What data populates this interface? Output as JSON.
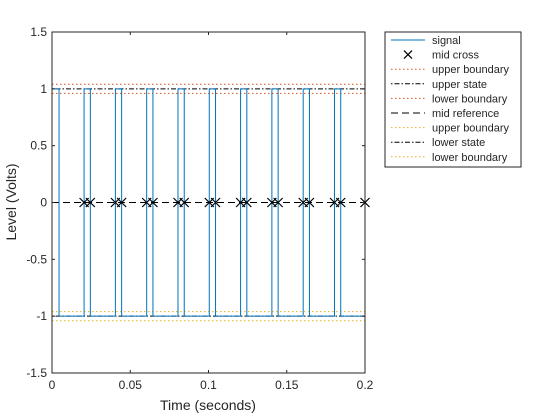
{
  "chart_data": {
    "type": "line",
    "title": "",
    "xlabel": "Time (seconds)",
    "ylabel": "Level (Volts)",
    "xlim": [
      0,
      0.2
    ],
    "ylim": [
      -1.5,
      1.5
    ],
    "xticks": [
      0,
      0.05,
      0.1,
      0.15,
      0.2
    ],
    "xtick_labels": [
      "0",
      "0.05",
      "0.1",
      "0.15",
      "0.2"
    ],
    "yticks": [
      -1.5,
      -1,
      -0.5,
      0,
      0.5,
      1,
      1.5
    ],
    "ytick_labels": [
      "-1.5",
      "-1",
      "-0.5",
      "0",
      "0.5",
      "1",
      "1.5"
    ],
    "grid": false,
    "legend_position": "outside-top-right",
    "signal": {
      "name": "signal",
      "color": "#0072BD",
      "high": 1,
      "low": -1,
      "start_level": 1,
      "transitions": [
        0.0045,
        0.0205,
        0.0245,
        0.0405,
        0.0445,
        0.0605,
        0.0645,
        0.0805,
        0.0845,
        0.1005,
        0.1045,
        0.1205,
        0.1245,
        0.1405,
        0.1445,
        0.1605,
        0.1645,
        0.1805,
        0.1845,
        0.2
      ]
    },
    "mid_cross": {
      "name": "mid cross",
      "color": "#000000",
      "points_x": [
        0.0205,
        0.0245,
        0.0405,
        0.0445,
        0.0605,
        0.0645,
        0.0805,
        0.0845,
        0.1005,
        0.1045,
        0.1205,
        0.1245,
        0.1405,
        0.1445,
        0.1605,
        0.1645,
        0.1805,
        0.1845,
        0.2
      ],
      "y": 0
    },
    "reference_lines": [
      {
        "name": "upper boundary",
        "y": 1.04,
        "style": "dotted",
        "color": "#D95319"
      },
      {
        "name": "upper state",
        "y": 1.0,
        "style": "dashdot",
        "color": "#000000"
      },
      {
        "name": "lower boundary",
        "y": 0.96,
        "style": "dotted",
        "color": "#D95319"
      },
      {
        "name": "mid reference",
        "y": 0,
        "style": "dashed",
        "color": "#000000"
      },
      {
        "name": "upper boundary",
        "y": -0.96,
        "style": "dotted",
        "color": "#EDB120"
      },
      {
        "name": "lower state",
        "y": -1.0,
        "style": "dashdot",
        "color": "#000000"
      },
      {
        "name": "lower boundary",
        "y": -1.04,
        "style": "dotted",
        "color": "#EDB120"
      }
    ],
    "legend": [
      {
        "label": "signal",
        "kind": "line",
        "style": "solid",
        "color": "#0072BD"
      },
      {
        "label": "mid cross",
        "kind": "marker",
        "style": "x",
        "color": "#000000"
      },
      {
        "label": "upper boundary",
        "kind": "line",
        "style": "dotted",
        "color": "#D95319"
      },
      {
        "label": "upper state",
        "kind": "line",
        "style": "dashdot",
        "color": "#000000"
      },
      {
        "label": "lower boundary",
        "kind": "line",
        "style": "dotted",
        "color": "#D95319"
      },
      {
        "label": "mid reference",
        "kind": "line",
        "style": "dashed",
        "color": "#000000"
      },
      {
        "label": "upper boundary",
        "kind": "line",
        "style": "dotted",
        "color": "#EDB120"
      },
      {
        "label": "lower state",
        "kind": "line",
        "style": "dashdot",
        "color": "#000000"
      },
      {
        "label": "lower boundary",
        "kind": "line",
        "style": "dotted",
        "color": "#EDB120"
      }
    ]
  }
}
